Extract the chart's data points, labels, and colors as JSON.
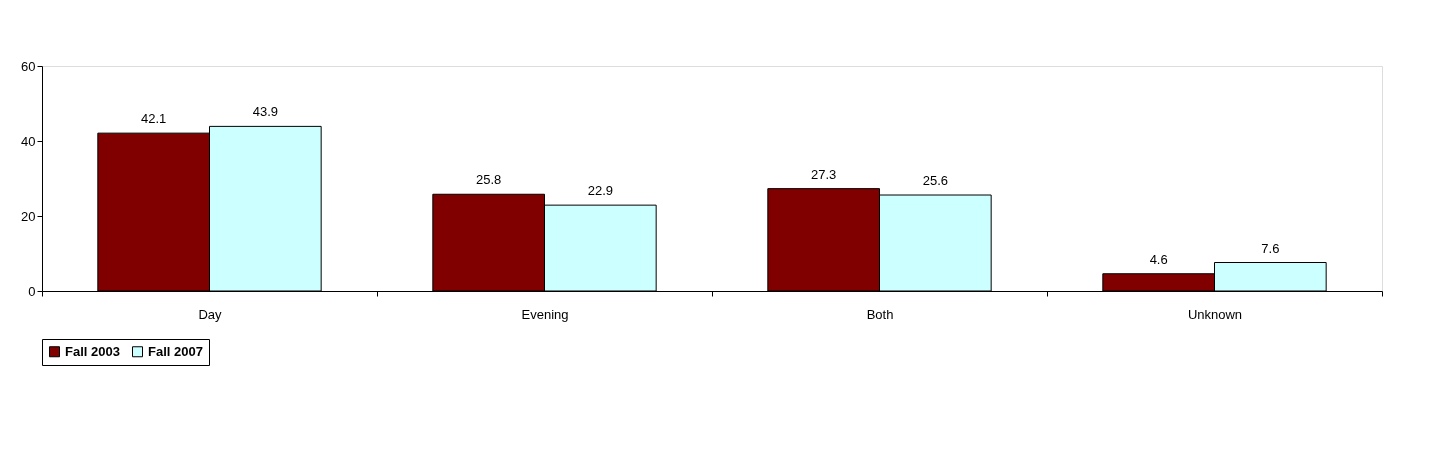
{
  "chart_data": {
    "type": "bar",
    "categories": [
      "Day",
      "Evening",
      "Both",
      "Unknown"
    ],
    "series": [
      {
        "name": "Fall 2003",
        "color": "#800000",
        "values": [
          42.1,
          25.8,
          27.3,
          4.6
        ]
      },
      {
        "name": "Fall 2007",
        "color": "#ccffff",
        "values": [
          43.9,
          22.9,
          25.6,
          7.6
        ]
      }
    ],
    "ylim": [
      0,
      60
    ],
    "yticks": [
      0,
      20,
      40,
      60
    ],
    "grid": false,
    "legend": "bottom",
    "data_labels": true
  }
}
